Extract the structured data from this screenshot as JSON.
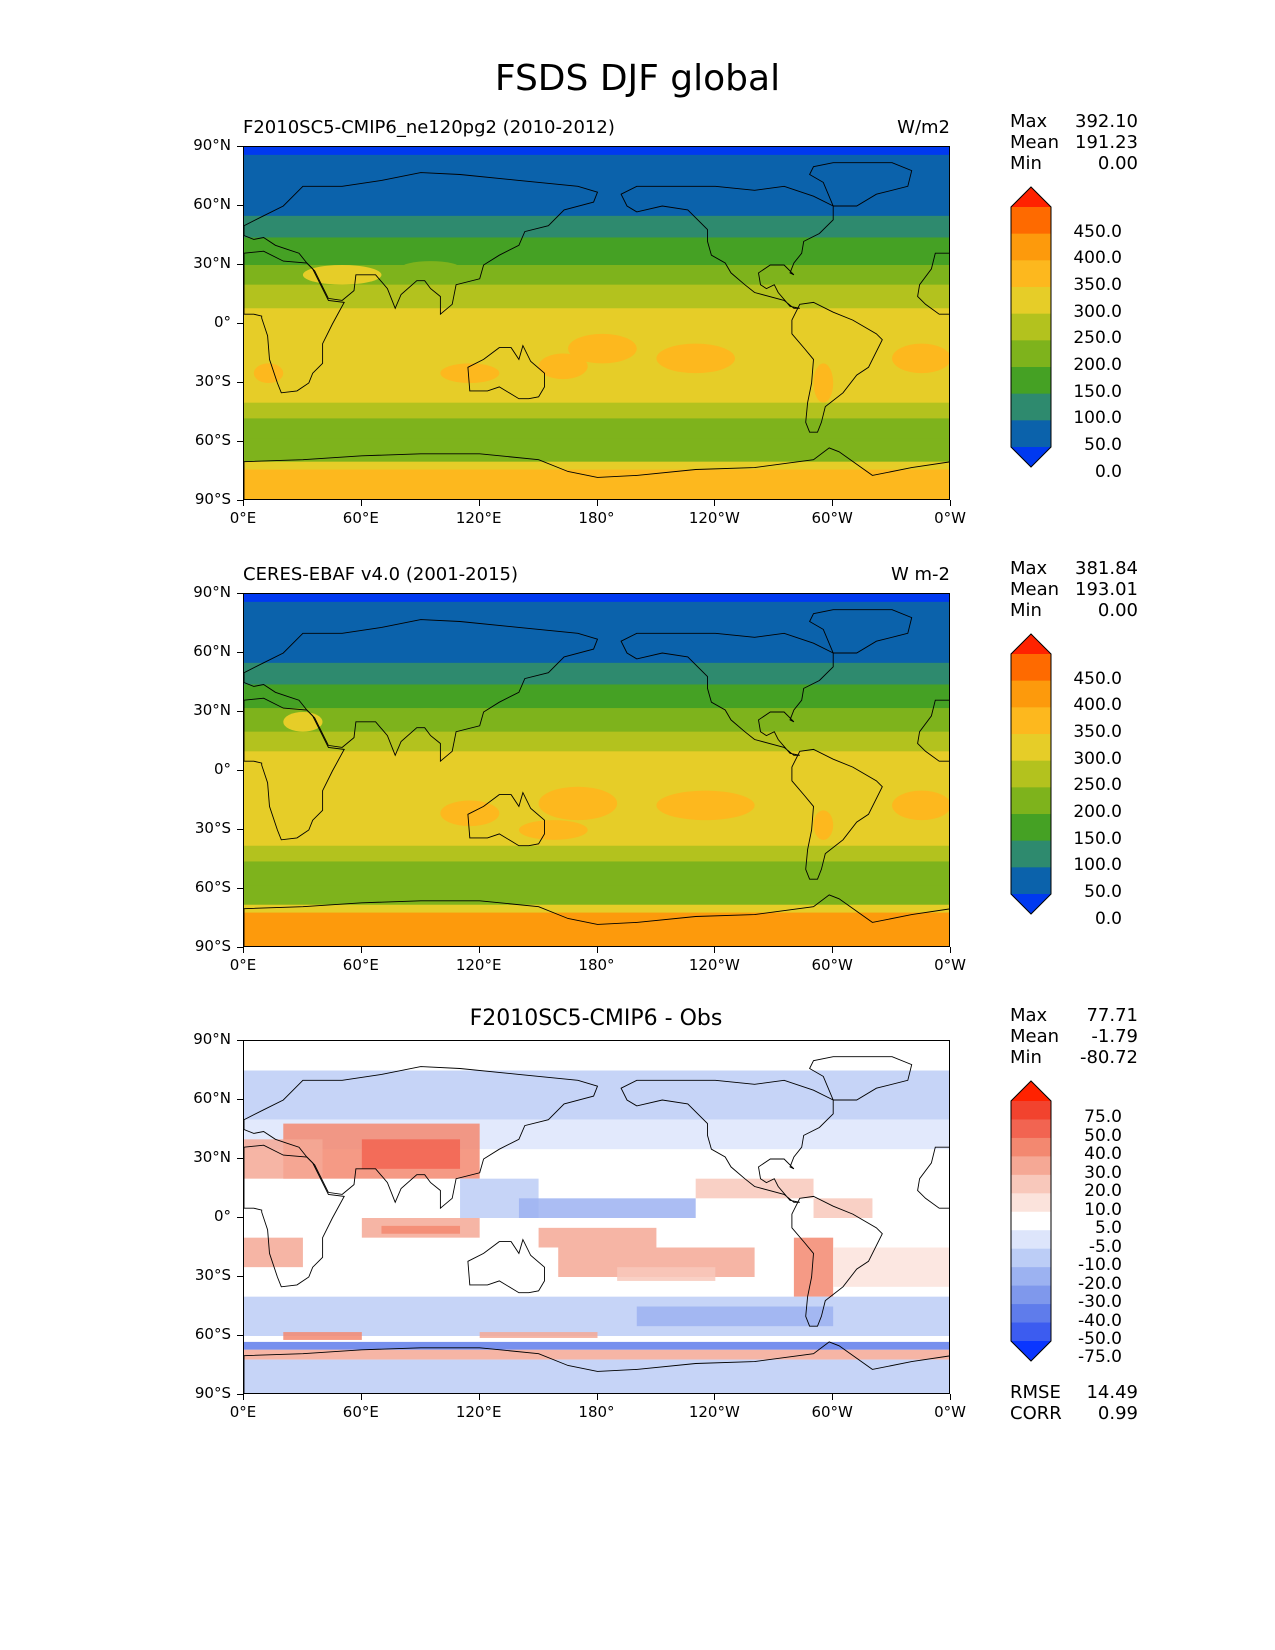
{
  "figure": {
    "title": "FSDS DJF global"
  },
  "axes": {
    "lat_ticks": [
      "90°N",
      "60°N",
      "30°N",
      "0°",
      "30°S",
      "60°S",
      "90°S"
    ],
    "lon_ticks": [
      "0°E",
      "60°E",
      "120°E",
      "180°",
      "120°W",
      "60°W",
      "0°W"
    ]
  },
  "panels": [
    {
      "title": "F2010SC5-CMIP6_ne120pg2 (2010-2012)",
      "title_position": "left",
      "units": "W/m2",
      "stats": [
        {
          "label": "Max",
          "value": "392.10"
        },
        {
          "label": "Mean",
          "value": "191.23"
        },
        {
          "label": "Min",
          "value": "0.00"
        }
      ],
      "colorbar": {
        "labels": [
          "450.0",
          "400.0",
          "350.0",
          "300.0",
          "250.0",
          "200.0",
          "150.0",
          "100.0",
          "50.0",
          "0.0"
        ],
        "colors": [
          "#ff2200",
          "#fe6a00",
          "#fd9a0c",
          "#fdb81e",
          "#e6cd28",
          "#b3c21e",
          "#7eb31c",
          "#45a124",
          "#2e8a6e",
          "#0b62ab",
          "#0039f0"
        ]
      },
      "field": "model"
    },
    {
      "title": "CERES-EBAF v4.0 (2001-2015)",
      "title_position": "left",
      "units": "W m-2",
      "stats": [
        {
          "label": "Max",
          "value": "381.84"
        },
        {
          "label": "Mean",
          "value": "193.01"
        },
        {
          "label": "Min",
          "value": "0.00"
        }
      ],
      "colorbar": {
        "labels": [
          "450.0",
          "400.0",
          "350.0",
          "300.0",
          "250.0",
          "200.0",
          "150.0",
          "100.0",
          "50.0",
          "0.0"
        ],
        "colors": [
          "#ff2200",
          "#fe6a00",
          "#fd9a0c",
          "#fdb81e",
          "#e6cd28",
          "#b3c21e",
          "#7eb31c",
          "#45a124",
          "#2e8a6e",
          "#0b62ab",
          "#0039f0"
        ]
      },
      "field": "obs"
    },
    {
      "title": "F2010SC5-CMIP6 - Obs",
      "title_position": "center",
      "units": "",
      "stats": [
        {
          "label": "Max",
          "value": "77.71"
        },
        {
          "label": "Mean",
          "value": "-1.79"
        },
        {
          "label": "Min",
          "value": "-80.72"
        }
      ],
      "colorbar": {
        "labels": [
          "75.0",
          "50.0",
          "40.0",
          "30.0",
          "20.0",
          "10.0",
          "5.0",
          "-5.0",
          "-10.0",
          "-20.0",
          "-30.0",
          "-40.0",
          "-50.0",
          "-75.0"
        ],
        "colors": [
          "#ff2200",
          "#f2432e",
          "#f26451",
          "#f38870",
          "#f5a895",
          "#f8c8bb",
          "#fbe3dc",
          "#ffffff",
          "#dde5fb",
          "#bccdf6",
          "#9cb2f1",
          "#7f98ec",
          "#5f7ceb",
          "#3c5cf0",
          "#0a36ff"
        ]
      },
      "extra_stats": [
        {
          "label": "RMSE",
          "value": "14.49"
        },
        {
          "label": "CORR",
          "value": "0.99"
        }
      ],
      "field": "diff"
    }
  ],
  "colors": {
    "land_outline": "#000000",
    "background": "#ffffff"
  }
}
